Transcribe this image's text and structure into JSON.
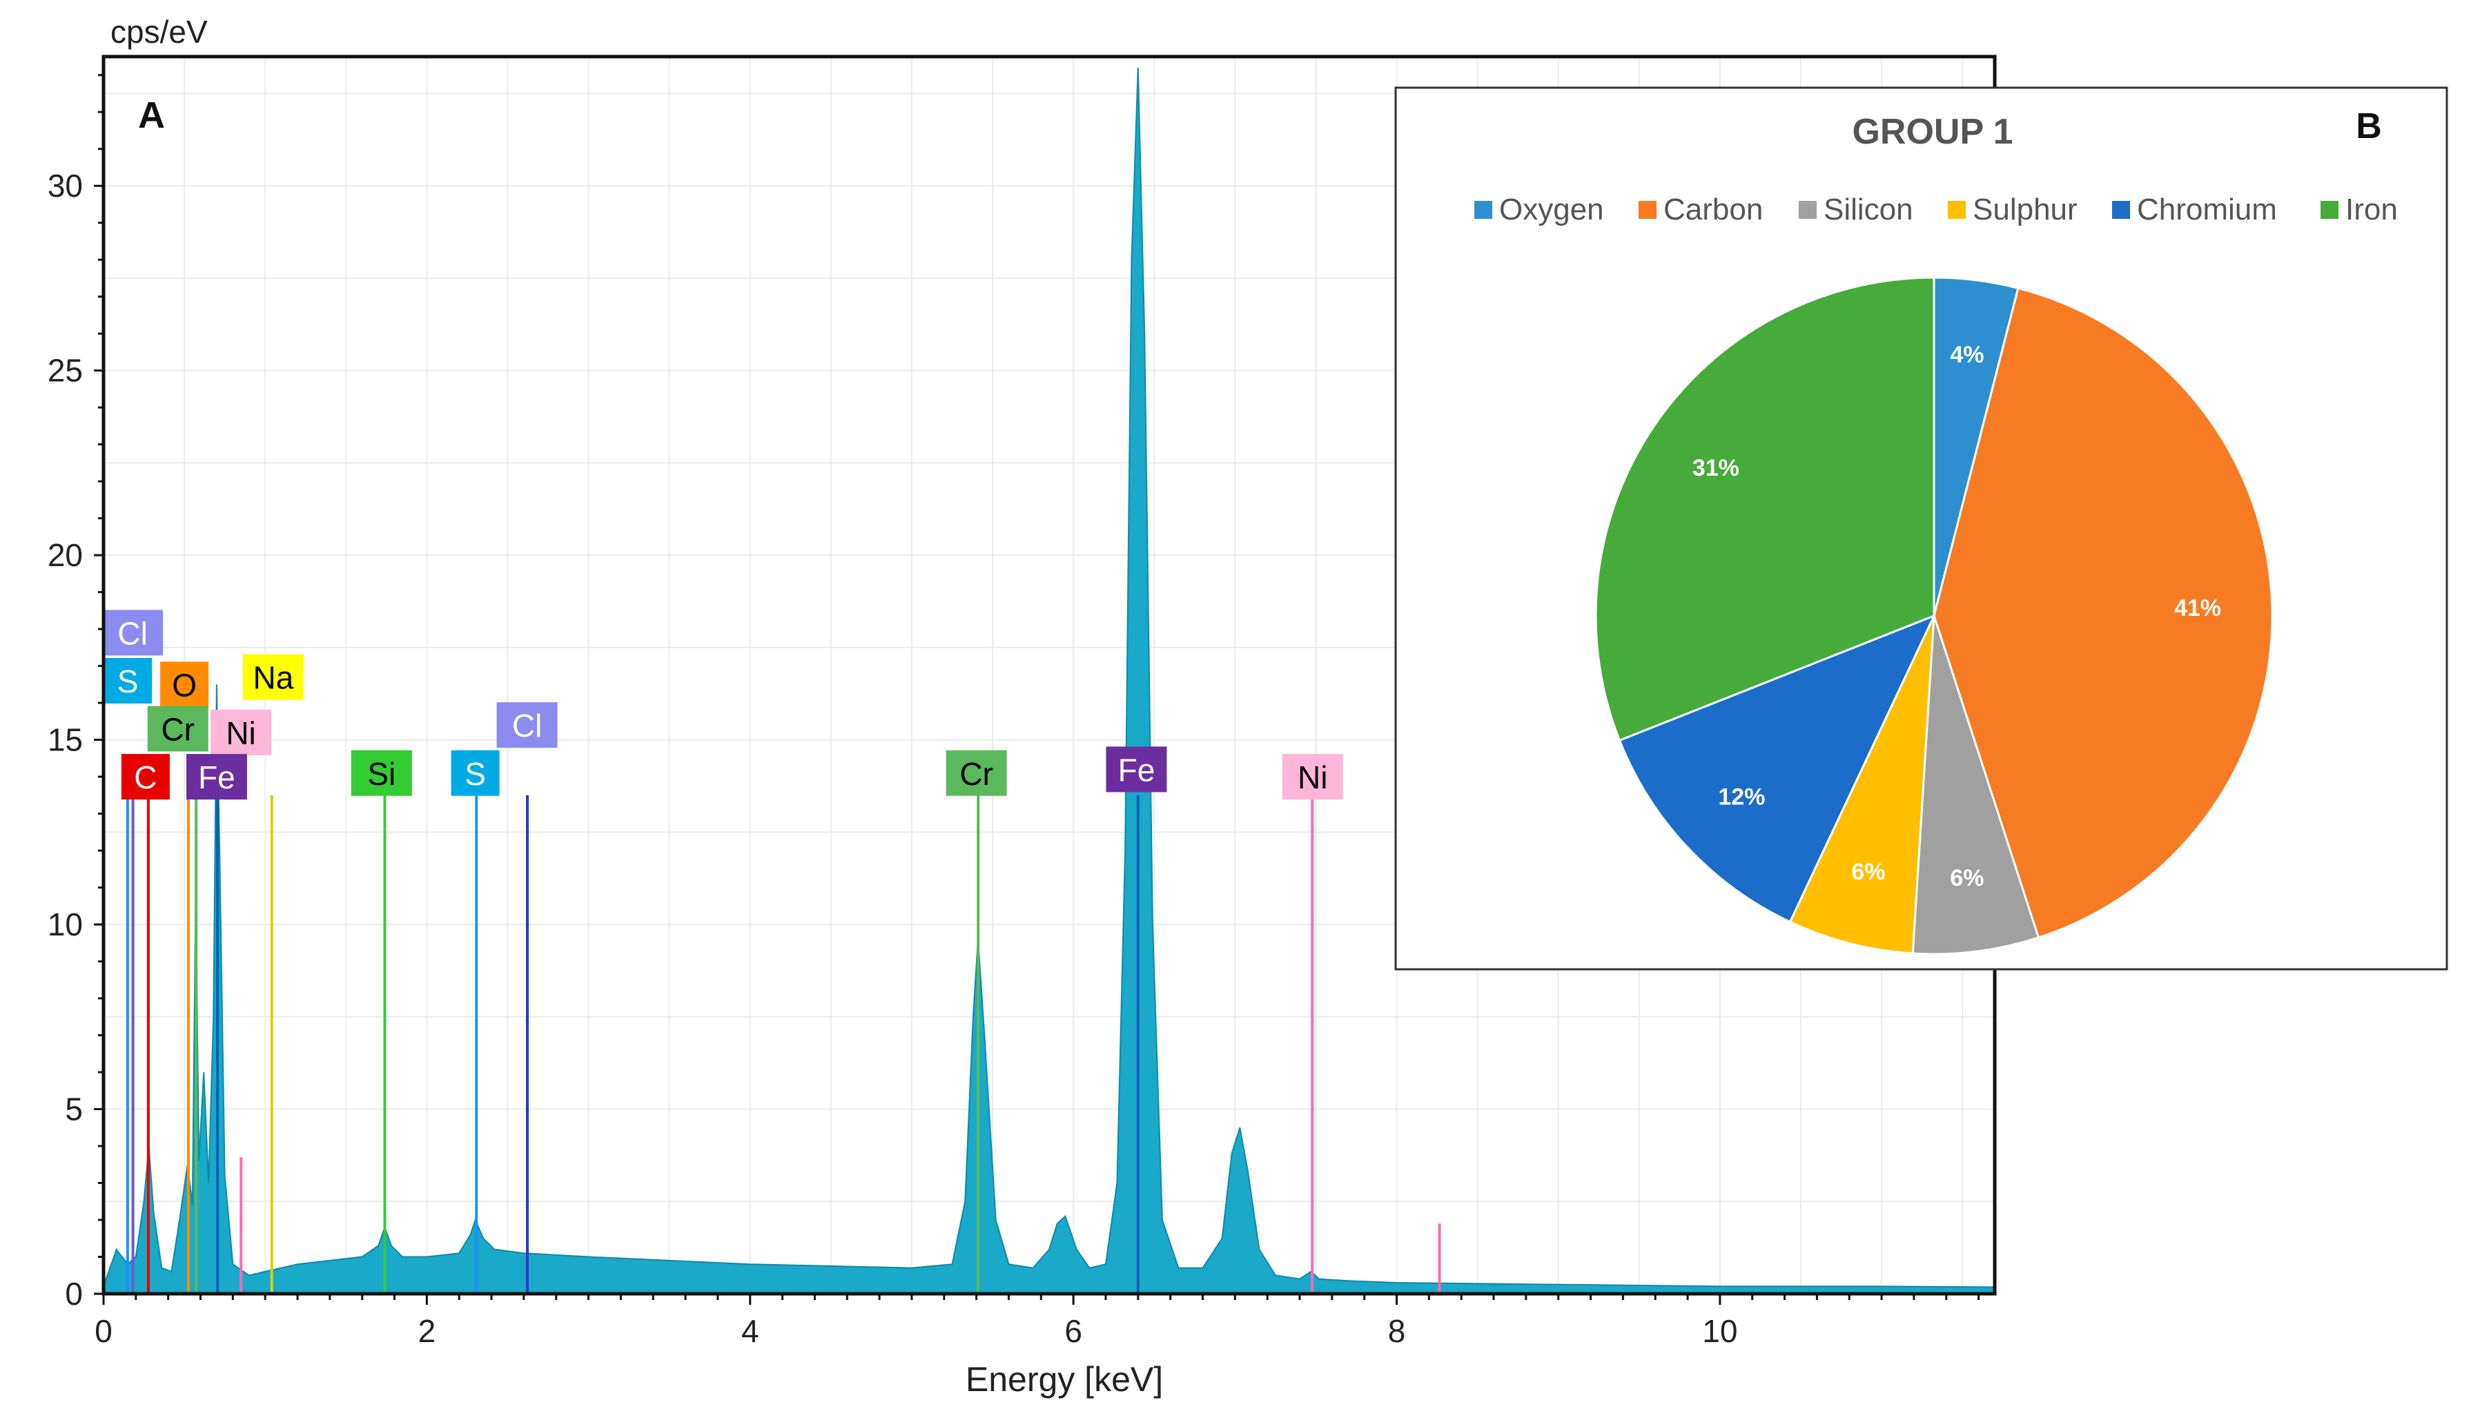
{
  "chart_data": [
    {
      "panel_label": "A",
      "type": "line",
      "title": "",
      "xlabel": "Energy [keV]",
      "ylabel": "cps/eV",
      "xlim": [
        0,
        11.7
      ],
      "ylim": [
        0,
        33.5
      ],
      "xticks": [
        0,
        2,
        4,
        6,
        8,
        10
      ],
      "xtick_labels": [
        "0",
        "2",
        "4",
        "6",
        "8",
        "10"
      ],
      "yticks": [
        0,
        5,
        10,
        15,
        20,
        25,
        30
      ],
      "ytick_labels": [
        "0",
        "5",
        "10",
        "15",
        "20",
        "25",
        "30"
      ],
      "grid": true,
      "fill_color": "#1aa9c8",
      "spectrum_points": [
        [
          0.0,
          0.2
        ],
        [
          0.08,
          1.2
        ],
        [
          0.15,
          0.8
        ],
        [
          0.2,
          1.0
        ],
        [
          0.25,
          2.5
        ],
        [
          0.28,
          4.0
        ],
        [
          0.31,
          2.2
        ],
        [
          0.36,
          0.7
        ],
        [
          0.42,
          0.6
        ],
        [
          0.47,
          2.0
        ],
        [
          0.52,
          3.5
        ],
        [
          0.55,
          2.4
        ],
        [
          0.57,
          10.8
        ],
        [
          0.59,
          3.6
        ],
        [
          0.62,
          6.0
        ],
        [
          0.65,
          3.0
        ],
        [
          0.68,
          7.5
        ],
        [
          0.7,
          16.5
        ],
        [
          0.72,
          11.5
        ],
        [
          0.75,
          3.2
        ],
        [
          0.8,
          0.8
        ],
        [
          0.9,
          0.5
        ],
        [
          1.0,
          0.6
        ],
        [
          1.1,
          0.7
        ],
        [
          1.2,
          0.8
        ],
        [
          1.4,
          0.9
        ],
        [
          1.6,
          1.0
        ],
        [
          1.7,
          1.3
        ],
        [
          1.74,
          1.8
        ],
        [
          1.78,
          1.3
        ],
        [
          1.85,
          1.0
        ],
        [
          2.0,
          1.0
        ],
        [
          2.2,
          1.1
        ],
        [
          2.27,
          1.6
        ],
        [
          2.3,
          2.0
        ],
        [
          2.35,
          1.5
        ],
        [
          2.42,
          1.2
        ],
        [
          2.6,
          1.1
        ],
        [
          3.0,
          1.0
        ],
        [
          3.5,
          0.9
        ],
        [
          4.0,
          0.8
        ],
        [
          4.5,
          0.75
        ],
        [
          5.0,
          0.7
        ],
        [
          5.25,
          0.8
        ],
        [
          5.33,
          2.5
        ],
        [
          5.38,
          7.5
        ],
        [
          5.41,
          9.6
        ],
        [
          5.45,
          7.0
        ],
        [
          5.52,
          2.0
        ],
        [
          5.6,
          0.8
        ],
        [
          5.75,
          0.7
        ],
        [
          5.85,
          1.2
        ],
        [
          5.9,
          1.9
        ],
        [
          5.95,
          2.1
        ],
        [
          6.02,
          1.2
        ],
        [
          6.1,
          0.7
        ],
        [
          6.2,
          0.8
        ],
        [
          6.27,
          3.0
        ],
        [
          6.32,
          12.0
        ],
        [
          6.36,
          28.0
        ],
        [
          6.4,
          33.2
        ],
        [
          6.44,
          26.0
        ],
        [
          6.49,
          10.0
        ],
        [
          6.55,
          2.0
        ],
        [
          6.65,
          0.7
        ],
        [
          6.8,
          0.7
        ],
        [
          6.92,
          1.5
        ],
        [
          6.98,
          3.8
        ],
        [
          7.03,
          4.5
        ],
        [
          7.08,
          3.3
        ],
        [
          7.15,
          1.2
        ],
        [
          7.25,
          0.5
        ],
        [
          7.4,
          0.4
        ],
        [
          7.47,
          0.6
        ],
        [
          7.52,
          0.4
        ],
        [
          7.7,
          0.35
        ],
        [
          8.0,
          0.3
        ],
        [
          9.0,
          0.25
        ],
        [
          10.0,
          0.2
        ],
        [
          11.0,
          0.2
        ],
        [
          11.7,
          0.18
        ]
      ],
      "element_lines": [
        {
          "element": "C",
          "energy": 0.277,
          "height": 13.5,
          "color": "#e60000"
        },
        {
          "element": "S",
          "energy": 0.149,
          "height": 13.5,
          "color": "#1e90ff"
        },
        {
          "element": "Cl",
          "energy": 0.182,
          "height": 13.5,
          "color": "#6a5acd"
        },
        {
          "element": "O",
          "energy": 0.525,
          "height": 13.5,
          "color": "#ff8c00"
        },
        {
          "element": "Cr",
          "energy": 0.573,
          "height": 13.5,
          "color": "#5cb85c"
        },
        {
          "element": "Fe",
          "energy": 0.705,
          "height": 13.5,
          "color": "#0a5fb4"
        },
        {
          "element": "Ni",
          "energy": 0.851,
          "height": 3.7,
          "color": "#ff69b4"
        },
        {
          "element": "Na",
          "energy": 1.041,
          "height": 13.5,
          "color": "#d4d400"
        },
        {
          "element": "Si",
          "energy": 1.74,
          "height": 13.5,
          "color": "#33cc33"
        },
        {
          "element": "S",
          "energy": 2.307,
          "height": 13.5,
          "color": "#1e90ff"
        },
        {
          "element": "Cl",
          "energy": 2.622,
          "height": 13.5,
          "color": "#3333cc"
        },
        {
          "element": "Cr",
          "energy": 5.411,
          "height": 13.5,
          "color": "#5cb85c"
        },
        {
          "element": "Fe",
          "energy": 6.4,
          "height": 13.5,
          "color": "#0a5fb4"
        },
        {
          "element": "Ni",
          "energy": 7.478,
          "height": 13.5,
          "color": "#ff69b4"
        },
        {
          "element": "Ni",
          "energy": 8.265,
          "height": 1.9,
          "color": "#ff69b4"
        }
      ],
      "element_labels": [
        {
          "text": "Cl",
          "energy": 0.18,
          "y": 17.9,
          "bg": "#8c8cf0",
          "fg": "#ffffff"
        },
        {
          "text": "S",
          "energy": 0.15,
          "y": 16.6,
          "bg": "#00aae4",
          "fg": "#ffffff"
        },
        {
          "text": "O",
          "energy": 0.5,
          "y": 16.5,
          "bg": "#ff8c00",
          "fg": "#000000"
        },
        {
          "text": "Na",
          "energy": 1.05,
          "y": 16.7,
          "bg": "#ffff00",
          "fg": "#000000"
        },
        {
          "text": "Cr",
          "energy": 0.46,
          "y": 15.3,
          "bg": "#5cb85c",
          "fg": "#000000"
        },
        {
          "text": "Ni",
          "energy": 0.85,
          "y": 15.2,
          "bg": "#ffb6d9",
          "fg": "#000000"
        },
        {
          "text": "C",
          "energy": 0.26,
          "y": 14.0,
          "bg": "#e60000",
          "fg": "#ffffff"
        },
        {
          "text": "Fe",
          "energy": 0.7,
          "y": 14.0,
          "bg": "#6a2e9e",
          "fg": "#ffffff"
        },
        {
          "text": "Si",
          "energy": 1.72,
          "y": 14.1,
          "bg": "#33cc33",
          "fg": "#000000"
        },
        {
          "text": "S",
          "energy": 2.3,
          "y": 14.1,
          "bg": "#00aae4",
          "fg": "#ffffff"
        },
        {
          "text": "Cl",
          "energy": 2.62,
          "y": 15.4,
          "bg": "#8c8cf0",
          "fg": "#ffffff"
        },
        {
          "text": "Cr",
          "energy": 5.4,
          "y": 14.1,
          "bg": "#5cb85c",
          "fg": "#000000"
        },
        {
          "text": "Fe",
          "energy": 6.39,
          "y": 14.2,
          "bg": "#6a2e9e",
          "fg": "#ffffff"
        },
        {
          "text": "Ni",
          "energy": 7.48,
          "y": 14.0,
          "bg": "#ffb6d9",
          "fg": "#000000"
        }
      ]
    },
    {
      "panel_label": "B",
      "type": "pie",
      "title": "GROUP 1",
      "legend_position": "top",
      "slices": [
        {
          "name": "Oxygen",
          "value": 4,
          "label": "4%",
          "color": "#2e8fd0"
        },
        {
          "name": "Carbon",
          "value": 41,
          "label": "41%",
          "color": "#f77b23"
        },
        {
          "name": "Silicon",
          "value": 6,
          "label": "6%",
          "color": "#a0a0a0"
        },
        {
          "name": "Sulphur",
          "value": 6,
          "label": "6%",
          "color": "#ffbf00"
        },
        {
          "name": "Chromium",
          "value": 12,
          "label": "12%",
          "color": "#1c6cc9"
        },
        {
          "name": "Iron",
          "value": 31,
          "label": "31%",
          "color": "#46ab3a"
        }
      ]
    }
  ]
}
